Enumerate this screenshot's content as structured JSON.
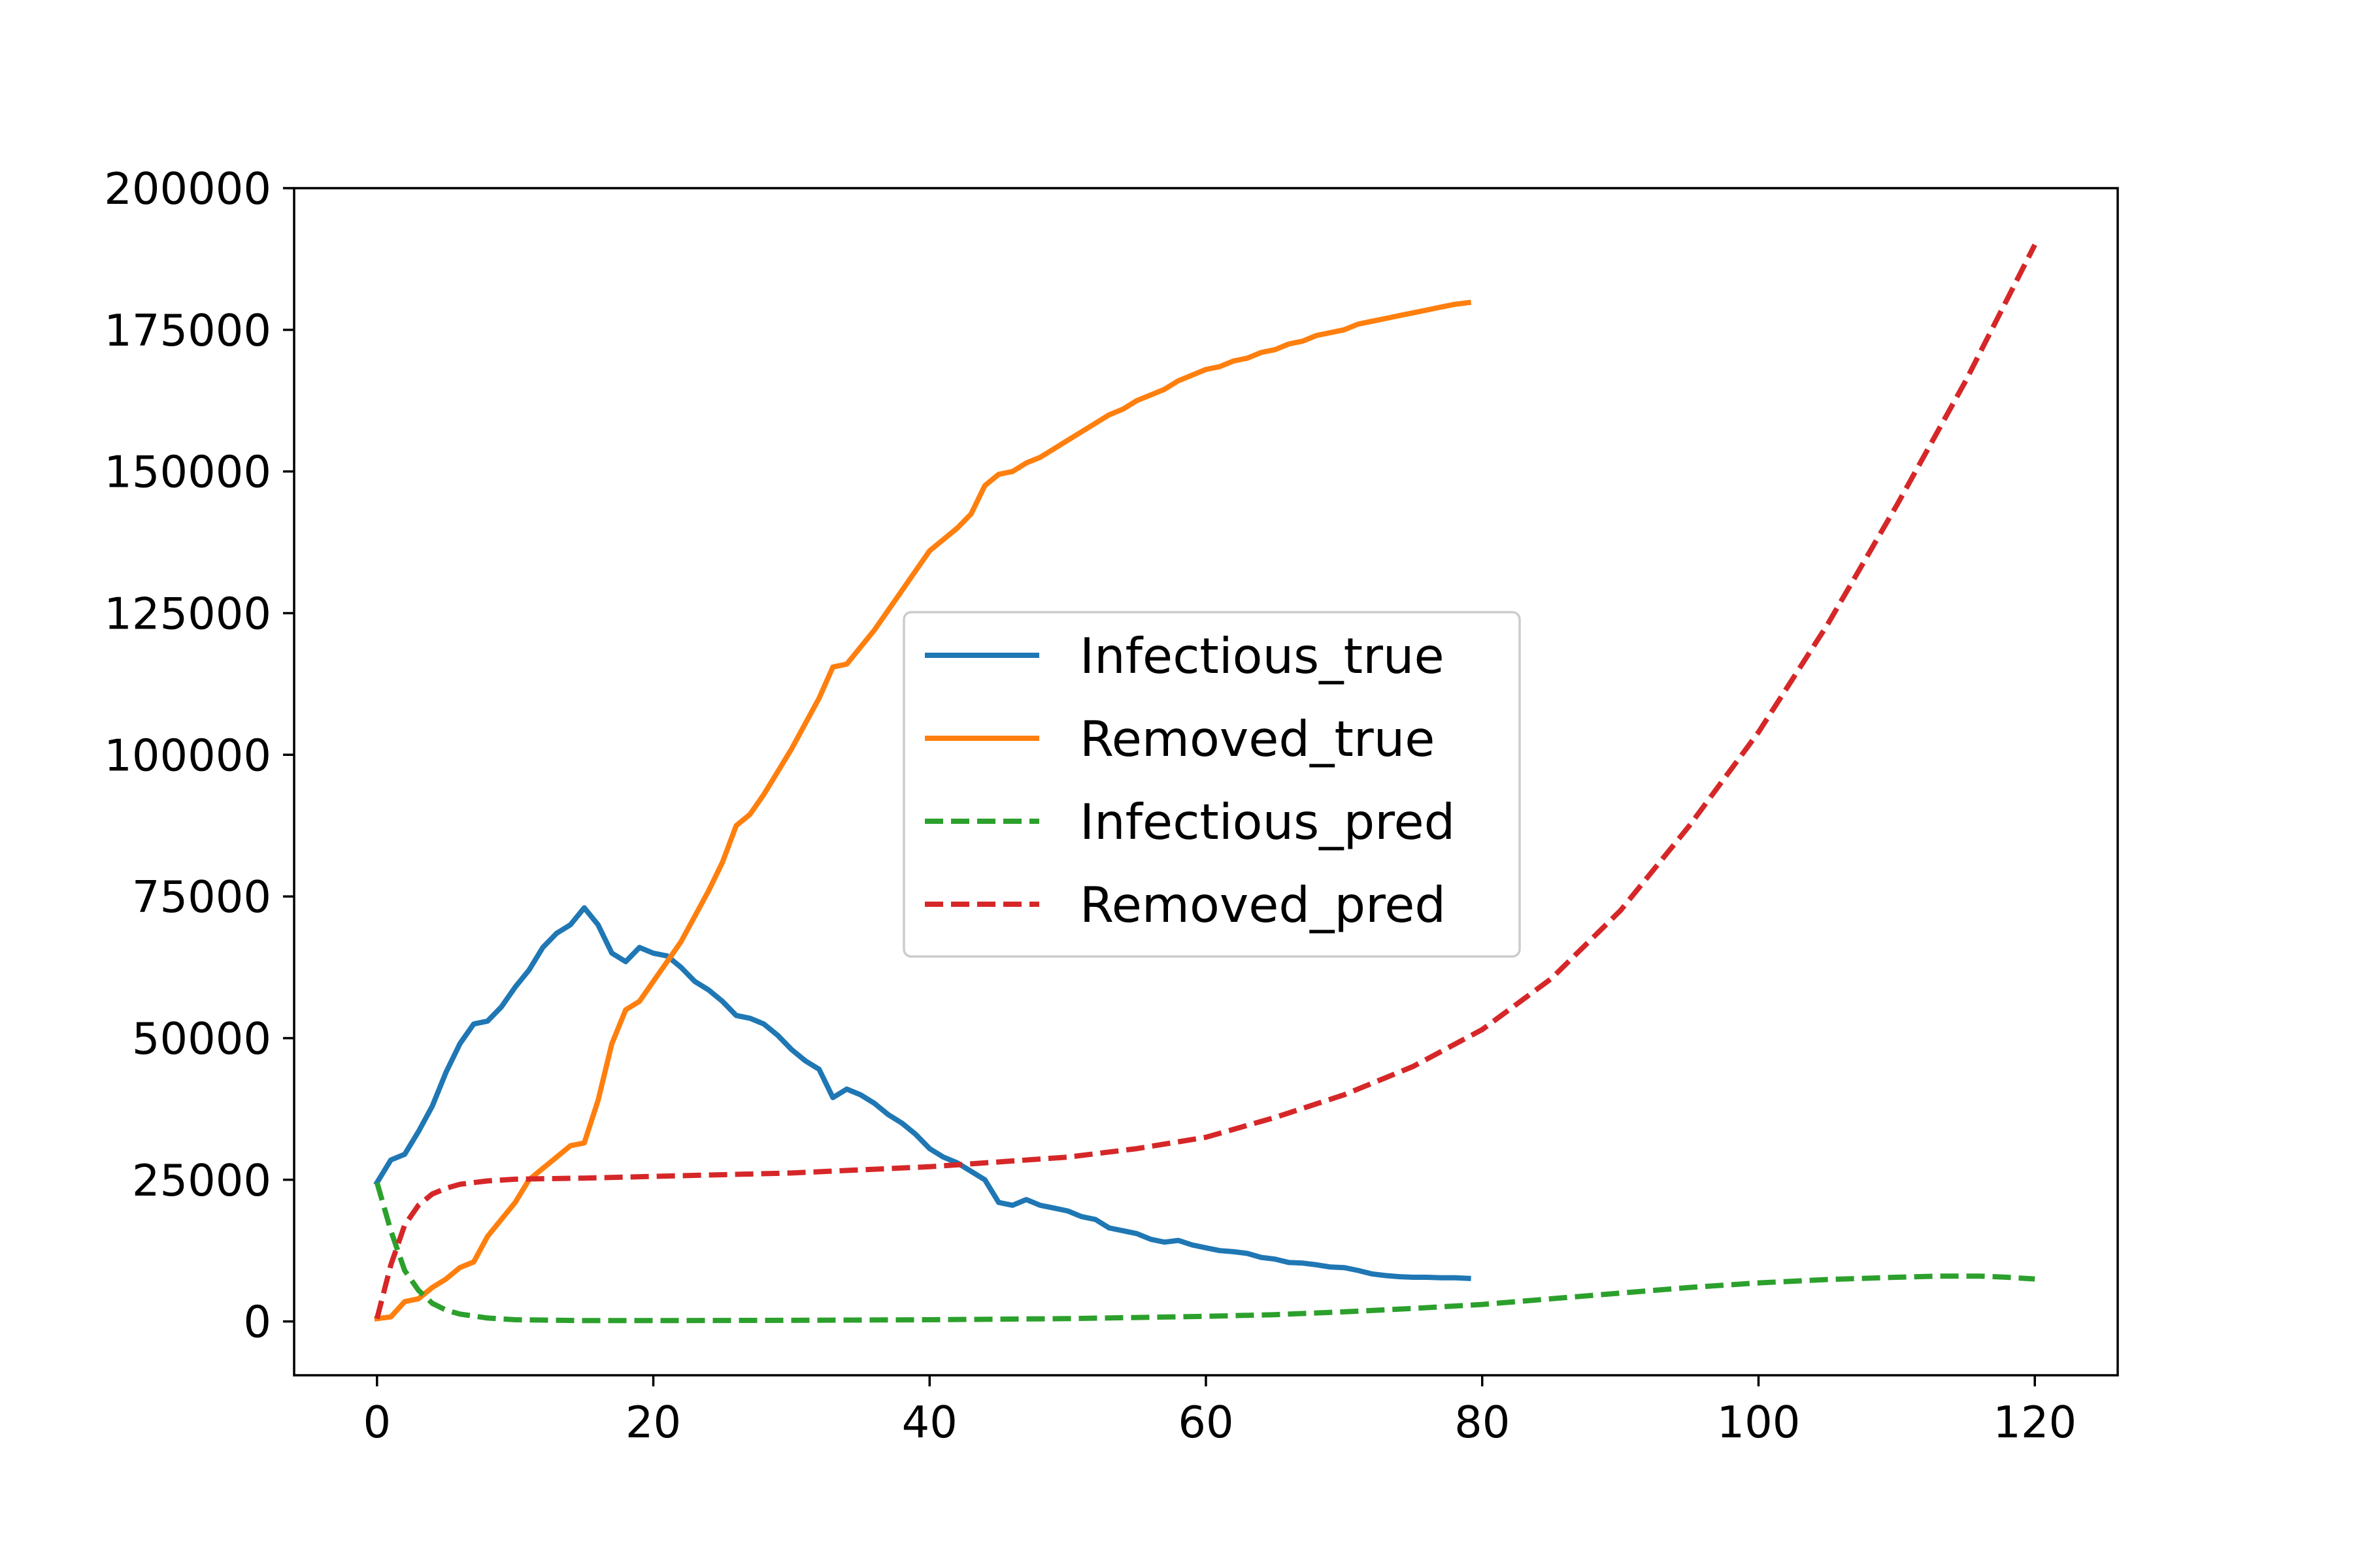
{
  "chart_data": {
    "type": "line",
    "title": "",
    "xlabel": "",
    "ylabel": "",
    "xlim": [
      -6,
      126
    ],
    "ylim": [
      -9500,
      200000
    ],
    "grid": false,
    "legend_position": "center",
    "xticks": [
      0,
      20,
      40,
      60,
      80,
      100,
      120
    ],
    "yticks": [
      0,
      25000,
      50000,
      75000,
      100000,
      125000,
      150000,
      175000,
      200000
    ],
    "series": [
      {
        "name": "Infectious_true",
        "color": "#1f77b4",
        "style": "solid",
        "x": [
          0,
          1,
          2,
          3,
          4,
          5,
          6,
          7,
          8,
          9,
          10,
          11,
          12,
          13,
          14,
          15,
          16,
          17,
          18,
          19,
          20,
          21,
          22,
          23,
          24,
          25,
          26,
          27,
          28,
          29,
          30,
          31,
          32,
          33,
          34,
          35,
          36,
          37,
          38,
          39,
          40,
          41,
          42,
          43,
          44,
          45,
          46,
          47,
          48,
          49,
          50,
          51,
          52,
          53,
          54,
          55,
          56,
          57,
          58,
          59,
          60,
          61,
          62,
          63,
          64,
          65,
          66,
          67,
          68,
          69,
          70,
          71,
          72,
          73,
          74,
          75,
          76,
          77,
          78,
          79
        ],
        "y": [
          24500,
          28500,
          29500,
          33500,
          38000,
          44000,
          49000,
          52500,
          53000,
          55500,
          59000,
          62000,
          66000,
          68500,
          70000,
          73000,
          70000,
          65000,
          63500,
          66000,
          65000,
          64500,
          62500,
          60000,
          58500,
          56500,
          54000,
          53500,
          52500,
          50500,
          48000,
          46000,
          44500,
          39500,
          41000,
          40000,
          38500,
          36500,
          35000,
          33000,
          30500,
          29000,
          28000,
          26500,
          25000,
          21000,
          20500,
          21500,
          20500,
          20000,
          19500,
          18500,
          18000,
          16500,
          16000,
          15500,
          14500,
          14000,
          14300,
          13500,
          13000,
          12500,
          12300,
          12000,
          11300,
          11000,
          10400,
          10300,
          10000,
          9600,
          9500,
          9000,
          8400,
          8100,
          7900,
          7800,
          7800,
          7700,
          7700,
          7600
        ]
      },
      {
        "name": "Removed_true",
        "color": "#ff7f0e",
        "style": "solid",
        "x": [
          0,
          1,
          2,
          3,
          4,
          5,
          6,
          7,
          8,
          9,
          10,
          11,
          12,
          13,
          14,
          15,
          16,
          17,
          18,
          19,
          20,
          21,
          22,
          23,
          24,
          25,
          26,
          27,
          28,
          29,
          30,
          31,
          32,
          33,
          34,
          35,
          36,
          37,
          38,
          39,
          40,
          41,
          42,
          43,
          44,
          45,
          46,
          47,
          48,
          49,
          50,
          51,
          52,
          53,
          54,
          55,
          56,
          57,
          58,
          59,
          60,
          61,
          62,
          63,
          64,
          65,
          66,
          67,
          68,
          69,
          70,
          71,
          72,
          73,
          74,
          75,
          76,
          77,
          78,
          79
        ],
        "y": [
          500,
          800,
          3500,
          4000,
          6000,
          7500,
          9500,
          10500,
          15000,
          18000,
          21000,
          25000,
          27000,
          29000,
          31000,
          31500,
          39000,
          49000,
          55000,
          56500,
          60000,
          63500,
          67000,
          71500,
          76000,
          81000,
          87500,
          89500,
          93000,
          97000,
          101000,
          105500,
          110000,
          115500,
          116000,
          119000,
          122000,
          125500,
          129000,
          132500,
          136000,
          138000,
          140000,
          142500,
          147500,
          149500,
          150000,
          151500,
          152500,
          154000,
          155500,
          157000,
          158500,
          160000,
          161000,
          162500,
          163500,
          164500,
          166000,
          167000,
          168000,
          168500,
          169500,
          170000,
          171000,
          171500,
          172500,
          173000,
          174000,
          174500,
          175000,
          176000,
          176500,
          177000,
          177500,
          178000,
          178500,
          179000,
          179500,
          179800
        ]
      },
      {
        "name": "Infectious_pred",
        "color": "#2ca02c",
        "style": "dashed",
        "x": [
          0,
          1,
          2,
          3,
          4,
          5,
          6,
          8,
          10,
          15,
          20,
          30,
          40,
          50,
          60,
          65,
          70,
          75,
          80,
          85,
          90,
          95,
          100,
          105,
          110,
          113,
          116,
          118,
          120
        ],
        "y": [
          24500,
          16000,
          9000,
          5500,
          3200,
          2000,
          1300,
          600,
          300,
          150,
          150,
          200,
          300,
          500,
          900,
          1200,
          1700,
          2300,
          3000,
          4000,
          5000,
          6000,
          6800,
          7400,
          7800,
          8000,
          8000,
          7800,
          7500
        ]
      },
      {
        "name": "Removed_pred",
        "color": "#d62728",
        "style": "dashed",
        "x": [
          0,
          1,
          2,
          3,
          4,
          5,
          6,
          8,
          10,
          15,
          20,
          30,
          40,
          50,
          55,
          60,
          65,
          70,
          75,
          80,
          85,
          90,
          95,
          100,
          105,
          110,
          115,
          120
        ],
        "y": [
          500,
          10000,
          17000,
          20500,
          22500,
          23500,
          24200,
          24800,
          25100,
          25300,
          25600,
          26200,
          27300,
          29000,
          30500,
          32500,
          36000,
          40000,
          45000,
          51500,
          60500,
          72500,
          87500,
          104000,
          123000,
          144000,
          166000,
          190000
        ]
      }
    ]
  }
}
